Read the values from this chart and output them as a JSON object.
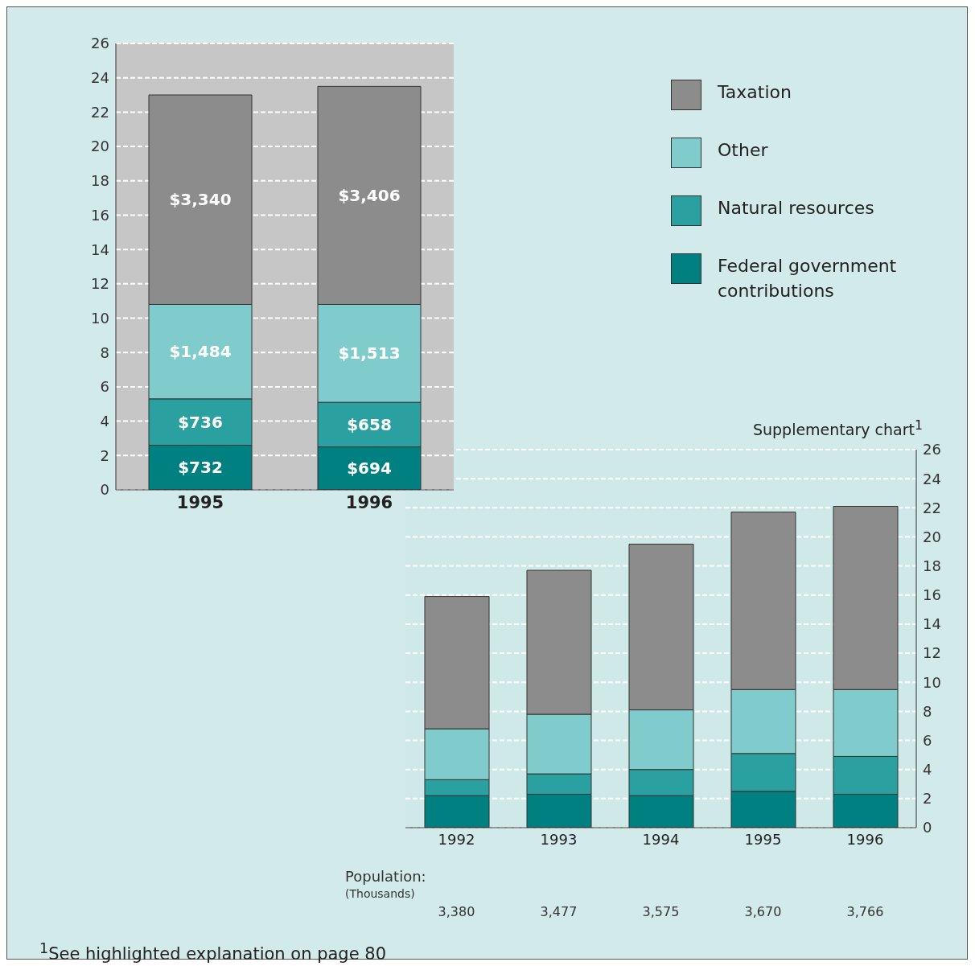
{
  "chart_data": [
    {
      "type": "bar",
      "stacked": true,
      "categories": [
        "1995",
        "1996"
      ],
      "ylim": [
        0,
        26
      ],
      "yticks": [
        0,
        2,
        4,
        6,
        8,
        10,
        12,
        14,
        16,
        18,
        20,
        22,
        24,
        26
      ],
      "grid": "y",
      "legend": "right",
      "series": [
        {
          "name": "Federal government contributions",
          "color": "#008080",
          "values": [
            2.6,
            2.5
          ]
        },
        {
          "name": "Natural resources",
          "color": "#2aa0a0",
          "values": [
            2.7,
            2.6
          ]
        },
        {
          "name": "Other",
          "color": "#80cccc",
          "values": [
            5.5,
            5.7
          ]
        },
        {
          "name": "Taxation",
          "color": "#8c8c8c",
          "values": [
            12.2,
            12.7
          ]
        }
      ],
      "annotations": [
        "$732",
        "$736",
        "$1,484",
        "$3,340",
        "$694",
        "$658",
        "$1,513",
        "$3,406"
      ]
    },
    {
      "type": "bar",
      "stacked": true,
      "title": "Supplementary chart$^{1}$",
      "categories": [
        "1992",
        "1993",
        "1994",
        "1995",
        "1996"
      ],
      "ylim": [
        0,
        26
      ],
      "yticks": [
        0,
        2,
        4,
        6,
        8,
        10,
        12,
        14,
        16,
        18,
        20,
        22,
        24,
        26
      ],
      "grid": "y",
      "series": [
        {
          "color": "#008080",
          "values": [
            2.2,
            2.3,
            2.2,
            2.5,
            2.3
          ]
        },
        {
          "color": "#2aa0a0",
          "values": [
            1.1,
            1.4,
            1.8,
            2.6,
            2.6
          ]
        },
        {
          "color": "#80cccc",
          "values": [
            3.5,
            4.1,
            4.1,
            4.4,
            4.6
          ]
        },
        {
          "color": "#8c8c8c",
          "values": [
            9.1,
            9.9,
            11.4,
            12.2,
            12.6
          ]
        }
      ],
      "annotations": [
        "Population:",
        "(Thousands)",
        "3,380",
        "3,477",
        "3,575",
        "3,670",
        "3,766",
        "$^{1}$See highlighted explanation on page 80"
      ]
    }
  ]
}
